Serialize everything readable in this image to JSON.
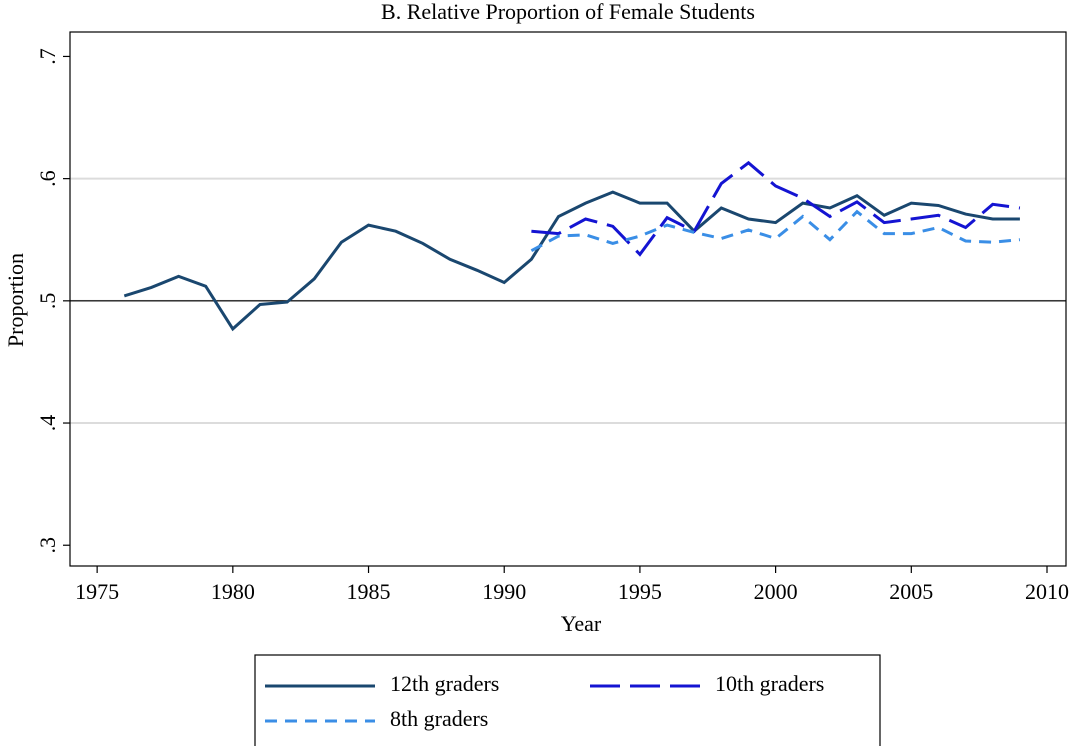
{
  "chart_data": {
    "type": "line",
    "title": "B. Relative Proportion of Female Students",
    "x_label": "Year",
    "y_label": "Proportion",
    "x": [
      1976,
      1977,
      1978,
      1979,
      1980,
      1981,
      1982,
      1983,
      1984,
      1985,
      1986,
      1987,
      1988,
      1989,
      1990,
      1991,
      1992,
      1993,
      1994,
      1995,
      1996,
      1997,
      1998,
      1999,
      2000,
      2001,
      2002,
      2003,
      2004,
      2005,
      2006,
      2007,
      2008,
      2009
    ],
    "series": [
      {
        "name": "12th graders",
        "color": "#1a476f",
        "dash": "solid",
        "values": [
          0.504,
          0.511,
          0.52,
          0.512,
          0.477,
          0.497,
          0.499,
          0.518,
          0.548,
          0.562,
          0.557,
          0.547,
          0.534,
          0.525,
          0.515,
          0.534,
          0.569,
          0.58,
          0.589,
          0.58,
          0.58,
          0.557,
          0.576,
          0.567,
          0.564,
          0.58,
          0.576,
          0.586,
          0.57,
          0.58,
          0.578,
          0.571,
          0.567,
          0.567
        ]
      },
      {
        "name": "10th graders",
        "color": "#1414d2",
        "dash": "long",
        "values": [
          null,
          null,
          null,
          null,
          null,
          null,
          null,
          null,
          null,
          null,
          null,
          null,
          null,
          null,
          null,
          0.557,
          0.555,
          0.567,
          0.561,
          0.538,
          0.568,
          0.557,
          0.596,
          0.613,
          0.594,
          0.584,
          0.569,
          0.581,
          0.564,
          0.567,
          0.57,
          0.56,
          0.579,
          0.576
        ]
      },
      {
        "name": "8th graders",
        "color": "#3a8ee6",
        "dash": "short",
        "values": [
          null,
          null,
          null,
          null,
          null,
          null,
          null,
          null,
          null,
          null,
          null,
          null,
          null,
          null,
          null,
          0.541,
          0.553,
          0.554,
          0.547,
          0.553,
          0.562,
          0.556,
          0.551,
          0.558,
          0.551,
          0.569,
          0.55,
          0.573,
          0.555,
          0.555,
          0.56,
          0.549,
          0.548,
          0.55
        ]
      }
    ],
    "xlim": [
      1974,
      2010.7
    ],
    "xticks": [
      1975,
      1980,
      1985,
      1990,
      1995,
      2000,
      2005,
      2010
    ],
    "ylim": [
      0.283,
      0.72
    ],
    "yticks": [
      {
        "value": 0.3,
        "label": ".3"
      },
      {
        "value": 0.4,
        "label": ".4"
      },
      {
        "value": 0.5,
        "label": ".5"
      },
      {
        "value": 0.6,
        "label": ".6"
      },
      {
        "value": 0.7,
        "label": ".7"
      }
    ],
    "grid": true,
    "yline": 0.5,
    "legend": "bottom"
  }
}
